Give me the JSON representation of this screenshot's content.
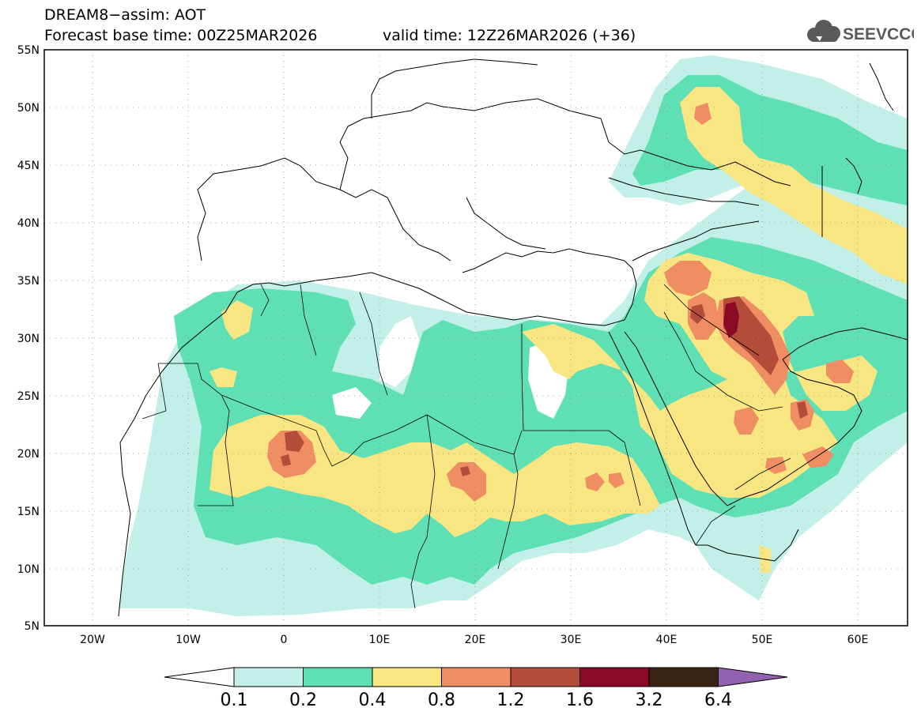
{
  "header": {
    "title_line1": "DREAM8−assim: AOT",
    "title_line2": "Forecast base time: 00Z25MAR2026",
    "valid_time": "valid time: 12Z26MAR2026 (+36)",
    "logo_text": "SEEVCCC",
    "logo_icon": "cloud-icon"
  },
  "map": {
    "lon_range": [
      -25,
      65
    ],
    "lat_range": [
      5,
      55
    ],
    "lat_labels": [
      "55N",
      "50N",
      "45N",
      "40N",
      "35N",
      "30N",
      "25N",
      "20N",
      "15N",
      "10N",
      "5N"
    ],
    "lon_labels": [
      "20W",
      "10W",
      "0",
      "10E",
      "20E",
      "30E",
      "40E",
      "50E",
      "60E"
    ],
    "grid": "dotted"
  },
  "colorbar": {
    "levels": [
      "0.1",
      "0.2",
      "0.4",
      "0.8",
      "1.2",
      "1.6",
      "3.2",
      "6.4"
    ],
    "colors": [
      "#c2f0e8",
      "#5fe0b4",
      "#f8e682",
      "#ef8d63",
      "#b34d3a",
      "#8a0a26",
      "#3b2314",
      "#8f63ad"
    ],
    "under_color": "#ffffff"
  }
}
